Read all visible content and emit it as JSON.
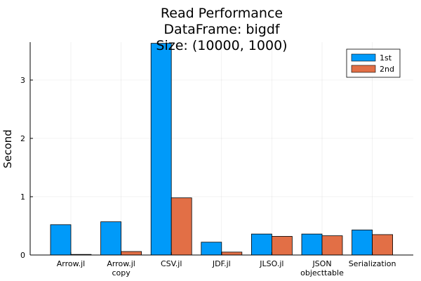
{
  "chart_data": {
    "type": "bar",
    "title_lines": [
      "Read Performance",
      "DataFrame: bigdf",
      "Size: (10000, 1000)"
    ],
    "xlabel": "",
    "ylabel": "Second",
    "ylim": [
      0,
      3.65
    ],
    "yticks": [
      0,
      1,
      2,
      3
    ],
    "ytick_labels": [
      "0",
      "1",
      "2",
      "3"
    ],
    "grid": true,
    "legend_position": "top-right",
    "categories": [
      [
        "Arrow.jl"
      ],
      [
        "Arrow.jl",
        "copy"
      ],
      [
        "CSV.jl"
      ],
      [
        "JDF.jl"
      ],
      [
        "JLSO.jl"
      ],
      [
        "JSON",
        "objecttable"
      ],
      [
        "Serialization"
      ]
    ],
    "series": [
      {
        "name": "1st",
        "color": "#009af9",
        "values": [
          0.52,
          0.57,
          3.63,
          0.22,
          0.36,
          0.36,
          0.43
        ]
      },
      {
        "name": "2nd",
        "color": "#e26f46",
        "values": [
          0.01,
          0.06,
          0.98,
          0.05,
          0.32,
          0.33,
          0.35
        ]
      }
    ]
  }
}
